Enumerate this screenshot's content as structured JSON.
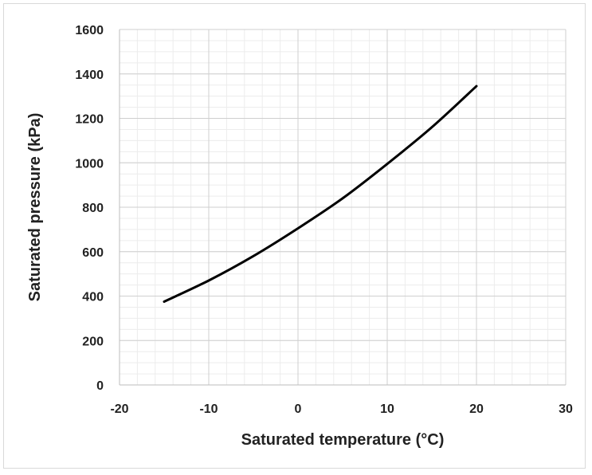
{
  "chart_data": {
    "type": "line",
    "title": "",
    "xlabel": "Saturated temperature (°C)",
    "ylabel": "Saturated pressure (kPa)",
    "xlim": [
      -20,
      30
    ],
    "ylim": [
      0,
      1600
    ],
    "x_ticks": [
      -20,
      -10,
      0,
      10,
      20,
      30
    ],
    "y_ticks": [
      0,
      200,
      400,
      600,
      800,
      1000,
      1200,
      1400,
      1600
    ],
    "grid": true,
    "legend": "none",
    "series": [
      {
        "color": "#000000",
        "x": [
          -15,
          -10,
          -5,
          0,
          5,
          10,
          15,
          20
        ],
        "y": [
          375,
          470,
          580,
          705,
          840,
          995,
          1160,
          1345
        ]
      }
    ]
  }
}
